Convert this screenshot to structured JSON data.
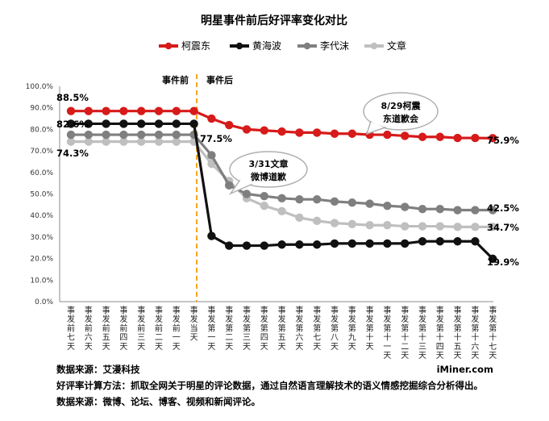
{
  "chart_data": {
    "type": "line",
    "title": "明星事件前后好评率变化对比",
    "ylim": [
      0,
      100
    ],
    "yticks": [
      "0.0%",
      "10.0%",
      "20.0%",
      "30.0%",
      "40.0%",
      "50.0%",
      "60.0%",
      "70.0%",
      "80.0%",
      "90.0%",
      "100.0%"
    ],
    "grid": false,
    "legend_position": "top",
    "categories": [
      "事发前七天",
      "事发前六天",
      "事发前五天",
      "事发前四天",
      "事发前三天",
      "事发前二天",
      "事发前一天",
      "事发当天",
      "事发第一天",
      "事发第二天",
      "事发第三天",
      "事发第四天",
      "事发第五天",
      "事发第六天",
      "事发第七天",
      "事发第八天",
      "事发第九天",
      "事发第十天",
      "事发第十一天",
      "事发第十二天",
      "事发第十三天",
      "事发第十四天",
      "事发第十五天",
      "事发第十六天",
      "事发第十七天"
    ],
    "series": [
      {
        "name": "柯震东",
        "color": "#d71a1a",
        "values": [
          88.5,
          88.5,
          88.5,
          88.5,
          88.5,
          88.5,
          88.5,
          88.5,
          85,
          82,
          80,
          79.5,
          79,
          78.5,
          78.5,
          78,
          78,
          77.5,
          77.5,
          77,
          76.5,
          76.5,
          76,
          76,
          75.9
        ]
      },
      {
        "name": "黄海波",
        "color": "#111111",
        "values": [
          82.6,
          82.6,
          82.6,
          82.6,
          82.6,
          82.6,
          82.6,
          82.6,
          30.5,
          26,
          26,
          26,
          26.5,
          26.5,
          26.5,
          27,
          27,
          27,
          27,
          27,
          28,
          28,
          28,
          28,
          19.9
        ]
      },
      {
        "name": "李代沫",
        "color": "#7f7f7f",
        "values": [
          77.5,
          77.5,
          77.5,
          77.5,
          77.5,
          77.5,
          77.5,
          77.5,
          68,
          54,
          50,
          49,
          48,
          47.5,
          47.5,
          46.5,
          46,
          45.5,
          44.5,
          44,
          43,
          43,
          42.5,
          42.5,
          42.5
        ]
      },
      {
        "name": "文章",
        "color": "#bfbfbf",
        "values": [
          74.3,
          74.3,
          74.3,
          74.3,
          74.3,
          74.3,
          74.3,
          74.3,
          64,
          56,
          48,
          44.5,
          42,
          39,
          37.5,
          36.5,
          36,
          35.5,
          35.5,
          35,
          35,
          35,
          34.7,
          34.7,
          34.7
        ]
      }
    ],
    "data_labels": [
      "88.5%",
      "82.6%",
      "74.3%",
      "77.5%",
      "75.9%",
      "42.5%",
      "34.7%",
      "19.9%"
    ],
    "phase_labels": {
      "before": "事件前",
      "after": "事件后"
    },
    "annotations": [
      {
        "line1": "8/29柯震",
        "line2": "东道歉会"
      },
      {
        "line1": "3/31文章",
        "line2": "微博道歉"
      }
    ]
  },
  "footer": {
    "source_left": "数据来源：艾漫科技",
    "brand": "iMiner.com",
    "method": "好评率计算方法：抓取全网关于明星的评论数据，通过自然语言理解技术的语义情感挖掘综合分析得出。",
    "source_channels": "数据来源：微博、论坛、博客、视频和新闻评论。"
  }
}
